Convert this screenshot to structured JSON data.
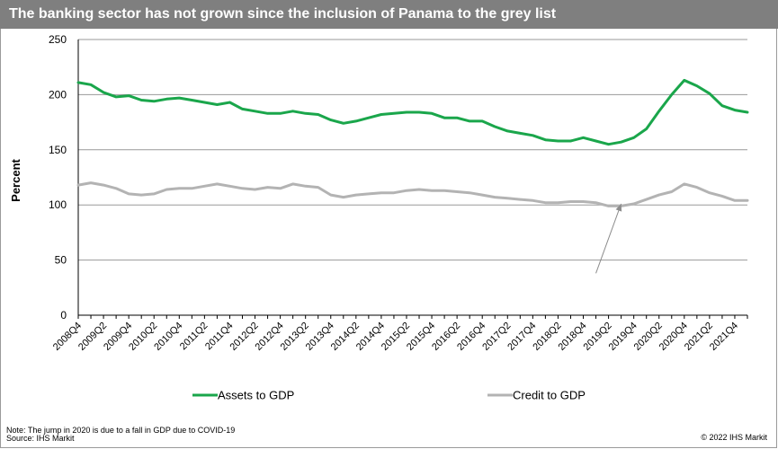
{
  "title": "The banking sector has not grown since the inclusion of Panama to the grey list",
  "footer": {
    "note": "Note: The jump in 2020 is due to a fall in GDP due to COVID-19",
    "source": "Source: IHS Markit",
    "copyright": "© 2022 IHS Markit"
  },
  "colors": {
    "title_bar": "#7f7f7f",
    "assets": "#1aa64b",
    "credit": "#b3b3b3",
    "grid": "#999999",
    "arrow": "#8c8c8c"
  },
  "chart_data": {
    "type": "line",
    "title": "",
    "xlabel": "",
    "ylabel": "Percent",
    "ylim": [
      0,
      250
    ],
    "yticks": [
      0,
      50,
      100,
      150,
      200,
      250
    ],
    "grid": true,
    "legend_position": "bottom",
    "x": [
      "2008Q4",
      "2009Q1",
      "2009Q2",
      "2009Q3",
      "2009Q4",
      "2010Q1",
      "2010Q2",
      "2010Q3",
      "2010Q4",
      "2011Q1",
      "2011Q2",
      "2011Q3",
      "2011Q4",
      "2012Q1",
      "2012Q2",
      "2012Q3",
      "2012Q4",
      "2013Q1",
      "2013Q2",
      "2013Q3",
      "2013Q4",
      "2014Q1",
      "2014Q2",
      "2014Q3",
      "2014Q4",
      "2015Q1",
      "2015Q2",
      "2015Q3",
      "2015Q4",
      "2016Q1",
      "2016Q2",
      "2016Q3",
      "2016Q4",
      "2017Q1",
      "2017Q2",
      "2017Q3",
      "2017Q4",
      "2018Q1",
      "2018Q2",
      "2018Q3",
      "2018Q4",
      "2019Q1",
      "2019Q2",
      "2019Q3",
      "2019Q4",
      "2020Q1",
      "2020Q2",
      "2020Q3",
      "2020Q4",
      "2021Q1",
      "2021Q2",
      "2021Q3",
      "2021Q4",
      "2022Q1"
    ],
    "tick_labels": [
      "2008Q4",
      "2009Q2",
      "2009Q4",
      "2010Q2",
      "2010Q4",
      "2011Q2",
      "2011Q4",
      "2012Q2",
      "2012Q4",
      "2013Q2",
      "2013Q4",
      "2014Q2",
      "2014Q4",
      "2015Q2",
      "2015Q4",
      "2016Q2",
      "2016Q4",
      "2017Q2",
      "2017Q4",
      "2018Q2",
      "2018Q4",
      "2019Q2",
      "2019Q4",
      "2020Q2",
      "2020Q4",
      "2021Q2",
      "2021Q4"
    ],
    "series": [
      {
        "name": "Assets to GDP",
        "values": [
          211,
          209,
          202,
          198,
          199,
          195,
          194,
          196,
          197,
          195,
          193,
          191,
          193,
          187,
          185,
          183,
          183,
          185,
          183,
          182,
          177,
          174,
          176,
          179,
          182,
          183,
          184,
          184,
          183,
          179,
          179,
          176,
          176,
          171,
          167,
          165,
          163,
          159,
          158,
          158,
          161,
          158,
          155,
          157,
          161,
          169,
          185,
          200,
          213,
          208,
          201,
          190,
          186,
          184
        ]
      },
      {
        "name": "Credit to GDP",
        "values": [
          118,
          120,
          118,
          115,
          110,
          109,
          110,
          114,
          115,
          115,
          117,
          119,
          117,
          115,
          114,
          116,
          115,
          119,
          117,
          116,
          109,
          107,
          109,
          110,
          111,
          111,
          113,
          114,
          113,
          113,
          112,
          111,
          109,
          107,
          106,
          105,
          104,
          102,
          102,
          103,
          103,
          102,
          99,
          99,
          101,
          105,
          109,
          112,
          119,
          116,
          111,
          108,
          104,
          104
        ]
      }
    ],
    "annotations": [
      {
        "type": "arrow",
        "from": [
          "2019Q1",
          38
        ],
        "to": [
          "2019Q3",
          101
        ]
      }
    ]
  }
}
